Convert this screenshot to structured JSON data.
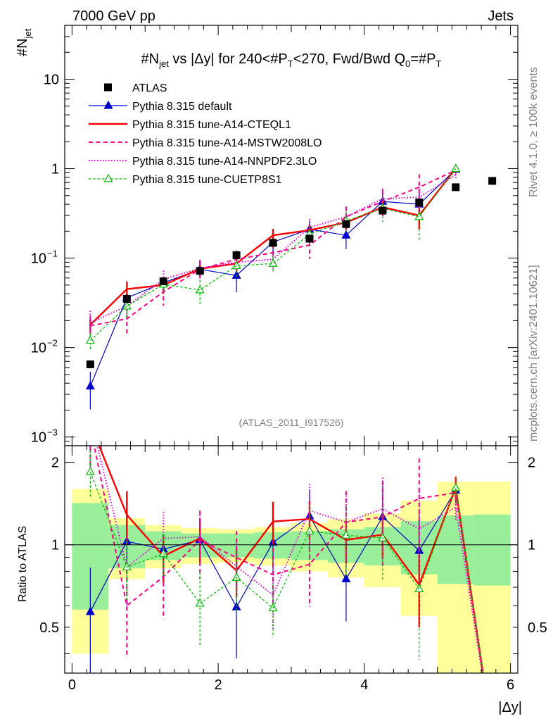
{
  "header": {
    "left": "7000 GeV pp",
    "right": "Jets"
  },
  "chart_data": {
    "type": "line",
    "title": "#N_jet vs |Δy| for 240<#P_T<270, Fwd/Bwd Q_0=#P_T",
    "title_parts": {
      "a": "#N",
      "a_sub": "jet",
      "b": " vs |Δy|  for 240<#P",
      "b_sub": "T",
      "c": "<270, Fwd/Bwd Q",
      "c_sub": "0",
      "d": "=#P",
      "d_sub": "T"
    },
    "ylabel": "#N",
    "ylabel_sub": "jet",
    "xlabel": "|Δy|",
    "ratio_ylabel": "Ratio to ATLAS",
    "xlim": [
      -0.1,
      6.1
    ],
    "ylim": [
      0.0008,
      40
    ],
    "ratio_ylim": [
      0.34,
      2.3
    ],
    "yscale": "log",
    "x_ticks": [
      0,
      2,
      4,
      6
    ],
    "y_tick_labels": [
      {
        "v": 0.001,
        "base": "10",
        "exp": "−3"
      },
      {
        "v": 0.01,
        "base": "10",
        "exp": "−2"
      },
      {
        "v": 0.1,
        "base": "10",
        "exp": "−1"
      },
      {
        "v": 1,
        "text": "1"
      },
      {
        "v": 10,
        "text": "10"
      }
    ],
    "ratio_ticks": [
      {
        "v": 0.5,
        "text": "0.5"
      },
      {
        "v": 1,
        "text": "1"
      },
      {
        "v": 2,
        "text": "2"
      }
    ],
    "bin_edges": [
      0,
      0.5,
      1.0,
      1.5,
      2.0,
      2.5,
      3.0,
      3.5,
      4.0,
      4.5,
      5.0,
      5.5,
      6.0
    ],
    "x": [
      0.25,
      0.75,
      1.25,
      1.75,
      2.25,
      2.75,
      3.25,
      3.75,
      4.25,
      4.75,
      5.25,
      5.75
    ],
    "data": {
      "name": "ATLAS",
      "values": [
        0.0065,
        0.035,
        0.055,
        0.072,
        0.108,
        0.148,
        0.165,
        0.24,
        0.34,
        0.42,
        0.62,
        0.73
      ],
      "band_stat": [
        0.42,
        0.18,
        0.12,
        0.1,
        0.1,
        0.11,
        0.12,
        0.14,
        0.16,
        0.22,
        0.28,
        0.29
      ],
      "band_total": [
        0.6,
        0.25,
        0.18,
        0.15,
        0.14,
        0.16,
        0.2,
        0.24,
        0.3,
        0.45,
        0.7,
        0.7
      ]
    },
    "series": [
      {
        "name": "Pythia 8.315 default",
        "color": "#0000cc",
        "style": "solid",
        "width": 1.2,
        "marker": "triangle",
        "values": [
          0.0037,
          0.036,
          0.053,
          0.075,
          0.064,
          0.151,
          0.21,
          0.18,
          0.43,
          0.4,
          0.98,
          null
        ],
        "err": [
          0.45,
          0.22,
          0.13,
          0.12,
          0.35,
          0.2,
          0.25,
          0.3,
          0.3,
          0.35,
          0.1,
          null
        ]
      },
      {
        "name": "Pythia 8.315 tune-A14-CTEQL1",
        "color": "#ff0000",
        "style": "solid",
        "width": 2.4,
        "marker": "none",
        "values": [
          0.018,
          0.045,
          0.05,
          0.076,
          0.087,
          0.18,
          0.205,
          0.25,
          0.37,
          0.3,
          1.0,
          null
        ],
        "err": [
          0.15,
          0.22,
          0.2,
          0.18,
          0.2,
          0.18,
          0.16,
          0.18,
          0.18,
          0.3,
          0.1,
          null
        ]
      },
      {
        "name": "Pythia 8.315 tune-A14-MSTW2008LO",
        "color": "#ff0080",
        "style": "dashed",
        "width": 2.0,
        "marker": "none",
        "values": [
          0.0175,
          0.021,
          0.042,
          0.075,
          0.097,
          0.115,
          0.14,
          0.29,
          0.43,
          0.62,
          0.96,
          null
        ],
        "err": [
          0.3,
          0.35,
          0.3,
          0.28,
          0.25,
          0.25,
          0.3,
          0.3,
          0.35,
          0.4,
          0.1,
          null
        ]
      },
      {
        "name": "Pythia 8.315 tune-A14-NNPDF2.3LO",
        "color": "#e000e0",
        "style": "dotted",
        "width": 2.0,
        "marker": "none",
        "values": [
          0.019,
          0.029,
          0.058,
          0.077,
          0.09,
          0.097,
          0.22,
          0.29,
          0.46,
          0.48,
          0.85,
          null
        ],
        "err": [
          0.35,
          0.3,
          0.25,
          0.2,
          0.22,
          0.25,
          0.25,
          0.28,
          0.3,
          0.4,
          0.1,
          null
        ]
      },
      {
        "name": "Pythia 8.315 tune-CUETP8S1",
        "color": "#00bb00",
        "style": "dashed",
        "width": 1.2,
        "marker": "open-triangle",
        "values": [
          0.012,
          0.029,
          0.051,
          0.044,
          0.082,
          0.087,
          0.185,
          0.26,
          0.36,
          0.29,
          1.0,
          null
        ],
        "err": [
          0.2,
          0.25,
          0.18,
          0.3,
          0.25,
          0.22,
          0.25,
          0.28,
          0.3,
          0.45,
          0.1,
          null
        ]
      }
    ],
    "legend_data_label": "ATLAS",
    "watermark": "(ATLAS_2011_I917526)",
    "side_label_top": "Rivet 4.1.0, ≥ 100k events",
    "side_label_bottom": "mcplots.cern.ch [arXiv:2401.10621]"
  }
}
